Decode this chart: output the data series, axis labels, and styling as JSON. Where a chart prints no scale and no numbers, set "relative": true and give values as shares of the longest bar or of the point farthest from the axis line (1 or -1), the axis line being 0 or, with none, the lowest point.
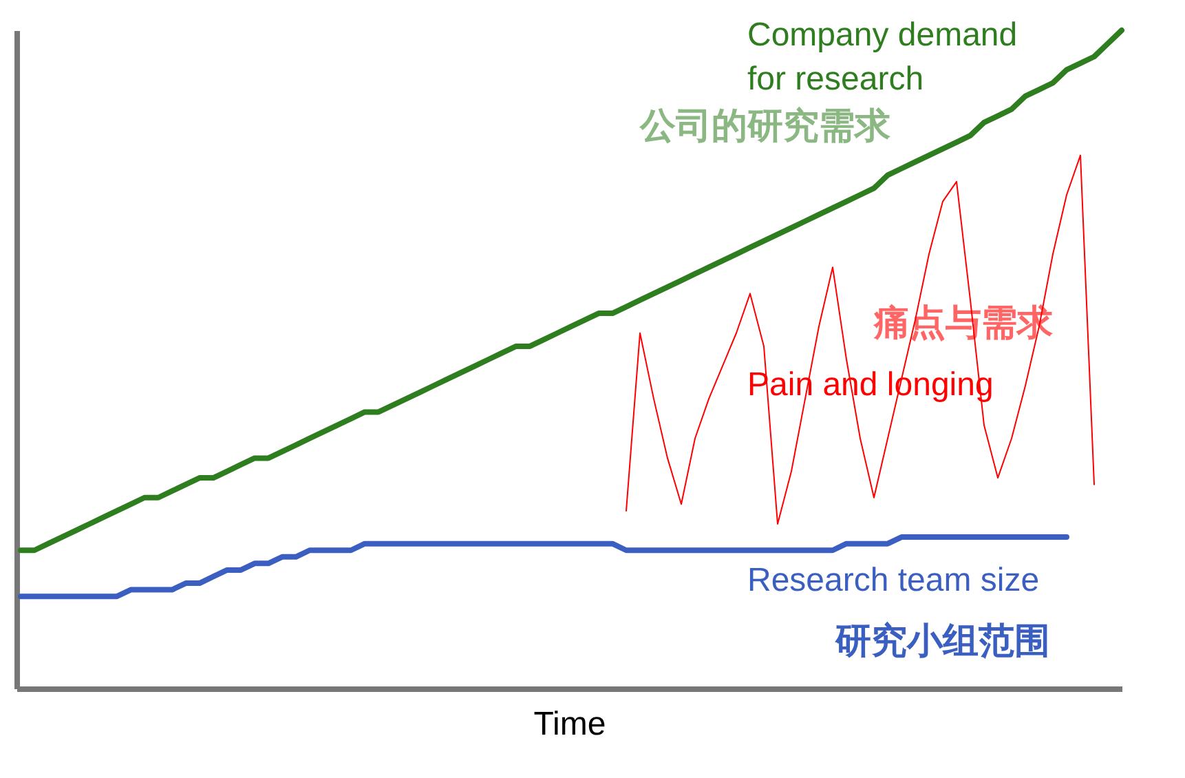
{
  "chart_data": {
    "type": "line",
    "relative": true,
    "xlabel": "Time",
    "grid": false,
    "legend": false,
    "tick_labels": false,
    "line_style": "solid",
    "marker": "none",
    "categories": [
      null,
      null,
      null,
      null,
      null,
      null,
      null,
      null,
      null,
      null,
      null,
      null,
      null,
      null,
      null,
      null,
      null,
      null,
      null,
      null,
      null,
      null,
      null,
      null,
      null,
      null,
      null,
      null,
      null,
      null,
      null,
      null,
      null,
      null,
      null,
      null,
      null,
      null,
      null,
      null,
      null,
      null,
      null,
      null,
      null,
      null,
      null,
      null,
      null,
      null,
      null,
      null,
      null,
      null,
      null,
      null,
      null,
      null,
      null,
      null,
      null,
      null,
      null,
      null,
      null,
      null,
      null,
      null,
      null,
      null,
      null,
      null,
      null,
      null,
      null,
      null,
      null,
      null,
      null,
      null,
      null
    ],
    "series": [
      {
        "name": "Company demand\nfor research",
        "color": "#2e7d1f",
        "values": [
          0.21,
          0.21,
          0.22,
          0.23,
          0.24,
          0.25,
          0.26,
          0.27,
          0.28,
          0.29,
          0.29,
          0.3,
          0.31,
          0.32,
          0.32,
          0.33,
          0.34,
          0.35,
          0.35,
          0.36,
          0.37,
          0.38,
          0.39,
          0.4,
          0.41,
          0.42,
          0.42,
          0.43,
          0.44,
          0.45,
          0.46,
          0.47,
          0.48,
          0.49,
          0.5,
          0.51,
          0.52,
          0.52,
          0.53,
          0.54,
          0.55,
          0.56,
          0.57,
          0.57,
          0.58,
          0.59,
          0.6,
          0.61,
          0.62,
          0.63,
          0.64,
          0.65,
          0.66,
          0.67,
          0.68,
          0.69,
          0.7,
          0.71,
          0.72,
          0.73,
          0.74,
          0.75,
          0.76,
          0.78,
          0.79,
          0.8,
          0.81,
          0.82,
          0.83,
          0.84,
          0.86,
          0.87,
          0.88,
          0.9,
          0.91,
          0.92,
          0.94,
          0.95,
          0.96,
          0.98,
          1.0
        ]
      },
      {
        "name": "Pain and longing",
        "color": "#ff0000",
        "values": [
          null,
          null,
          null,
          null,
          null,
          null,
          null,
          null,
          null,
          null,
          null,
          null,
          null,
          null,
          null,
          null,
          null,
          null,
          null,
          null,
          null,
          null,
          null,
          null,
          null,
          null,
          null,
          null,
          null,
          null,
          null,
          null,
          null,
          null,
          null,
          null,
          null,
          null,
          null,
          null,
          null,
          null,
          null,
          null,
          0.27,
          0.54,
          0.44,
          0.35,
          0.28,
          0.38,
          0.44,
          0.49,
          0.54,
          0.6,
          0.52,
          0.25,
          0.33,
          0.44,
          0.55,
          0.64,
          0.5,
          0.38,
          0.29,
          0.38,
          0.47,
          0.56,
          0.66,
          0.74,
          0.77,
          0.59,
          0.4,
          0.32,
          0.38,
          0.46,
          0.55,
          0.66,
          0.75,
          0.81,
          0.31,
          null,
          null
        ]
      },
      {
        "name": "Research team size",
        "color": "#3a5fc0",
        "values": [
          0.14,
          0.14,
          0.14,
          0.14,
          0.14,
          0.14,
          0.14,
          0.14,
          0.15,
          0.15,
          0.15,
          0.15,
          0.16,
          0.16,
          0.17,
          0.18,
          0.18,
          0.19,
          0.19,
          0.2,
          0.2,
          0.21,
          0.21,
          0.21,
          0.21,
          0.22,
          0.22,
          0.22,
          0.22,
          0.22,
          0.22,
          0.22,
          0.22,
          0.22,
          0.22,
          0.22,
          0.22,
          0.22,
          0.22,
          0.22,
          0.22,
          0.22,
          0.22,
          0.22,
          0.21,
          0.21,
          0.21,
          0.21,
          0.21,
          0.21,
          0.21,
          0.21,
          0.21,
          0.21,
          0.21,
          0.21,
          0.21,
          0.21,
          0.21,
          0.21,
          0.22,
          0.22,
          0.22,
          0.22,
          0.23,
          0.23,
          0.23,
          0.23,
          0.23,
          0.23,
          0.23,
          0.23,
          0.23,
          0.23,
          0.23,
          0.23,
          0.23,
          null,
          null,
          null,
          null
        ]
      }
    ],
    "annotations": [
      "公司的研究需求",
      "痛点与需求",
      "研究小组范围"
    ]
  }
}
